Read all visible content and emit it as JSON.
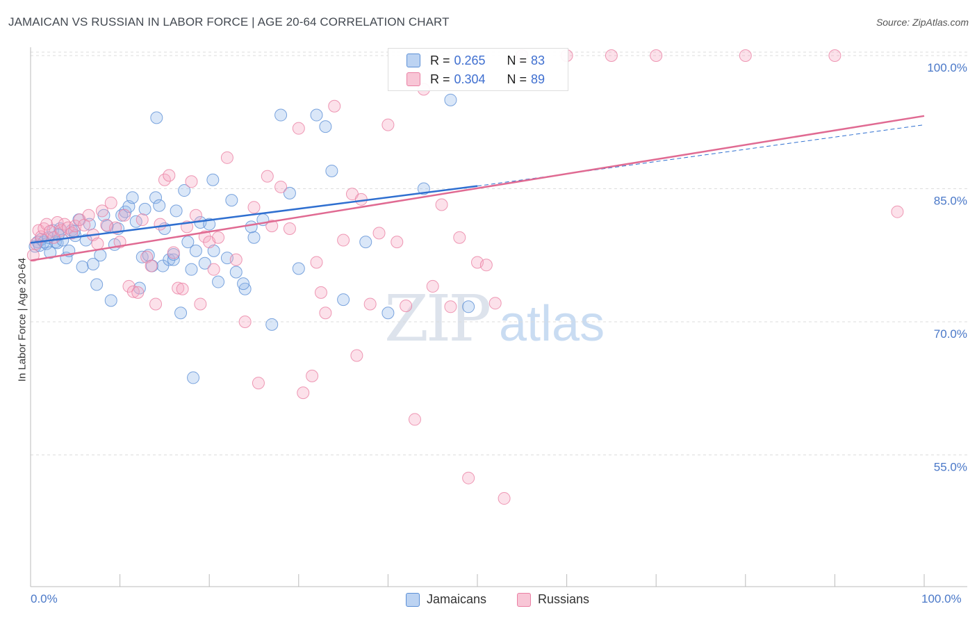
{
  "title": "JAMAICAN VS RUSSIAN IN LABOR FORCE | AGE 20-64 CORRELATION CHART",
  "source": "Source: ZipAtlas.com",
  "watermark": {
    "zip": "ZIP",
    "atlas": "atlas"
  },
  "colors": {
    "jamaicans": "#5b8fd6",
    "russians": "#ea7fa3",
    "jam_line": "#2f6fd0",
    "rus_line": "#e06a92",
    "tick": "#4a78c8"
  },
  "legend": {
    "rows": [
      {
        "r_label": "R =",
        "r_value": "0.265",
        "n_label": "N =",
        "n_value": "83"
      },
      {
        "r_label": "R =",
        "r_value": "0.304",
        "n_label": "N =",
        "n_value": "89"
      }
    ]
  },
  "bottom_legend": {
    "jamaicans": "Jamaicans",
    "russians": "Russians"
  },
  "chart_data": {
    "type": "scatter",
    "title": "JAMAICAN VS RUSSIAN IN LABOR FORCE | AGE 20-64 CORRELATION CHART",
    "xlabel": "",
    "ylabel": "In Labor Force | Age 20-64",
    "x_tick_labels": [
      "0.0%",
      "100.0%"
    ],
    "y_tick_labels": [
      "100.0%",
      "85.0%",
      "70.0%",
      "55.0%"
    ],
    "y_ticks": [
      100,
      85,
      70,
      55
    ],
    "xlim": [
      0,
      100
    ],
    "ylim": [
      40,
      102
    ],
    "legend_position": "top-center",
    "grid": true,
    "series": [
      {
        "name": "Jamaicans",
        "r": 0.265,
        "n": 83,
        "trend": {
          "x0": 0,
          "y0": 78.9,
          "x1": 50,
          "y1": 85.3,
          "dashed_to": {
            "x": 100,
            "y": 92.2
          }
        },
        "points": [
          [
            0.5,
            78.5
          ],
          [
            0.8,
            79.0
          ],
          [
            1.0,
            78.6
          ],
          [
            1.2,
            79.3
          ],
          [
            1.5,
            79.0
          ],
          [
            1.8,
            78.8
          ],
          [
            2.0,
            79.5
          ],
          [
            2.2,
            77.8
          ],
          [
            2.5,
            80.3
          ],
          [
            2.8,
            79.0
          ],
          [
            3.0,
            78.9
          ],
          [
            3.3,
            80.5
          ],
          [
            3.6,
            79.2
          ],
          [
            4.0,
            77.2
          ],
          [
            4.3,
            78.0
          ],
          [
            4.6,
            80.3
          ],
          [
            5.0,
            79.7
          ],
          [
            5.4,
            81.5
          ],
          [
            5.8,
            76.2
          ],
          [
            6.2,
            79.2
          ],
          [
            6.6,
            81.0
          ],
          [
            7.0,
            76.5
          ],
          [
            7.4,
            74.2
          ],
          [
            7.8,
            77.5
          ],
          [
            8.2,
            82.0
          ],
          [
            8.6,
            80.8
          ],
          [
            9.0,
            72.4
          ],
          [
            9.4,
            78.7
          ],
          [
            9.8,
            80.5
          ],
          [
            10.2,
            82.0
          ],
          [
            10.6,
            82.4
          ],
          [
            11.0,
            83.0
          ],
          [
            11.4,
            84.0
          ],
          [
            11.8,
            81.3
          ],
          [
            12.2,
            73.8
          ],
          [
            12.5,
            77.3
          ],
          [
            12.8,
            82.7
          ],
          [
            13.2,
            77.5
          ],
          [
            13.6,
            76.3
          ],
          [
            14.0,
            84.0
          ],
          [
            14.4,
            83.1
          ],
          [
            14.8,
            76.3
          ],
          [
            15.0,
            80.5
          ],
          [
            15.5,
            77.0
          ],
          [
            16.0,
            77.0
          ],
          [
            16.3,
            82.5
          ],
          [
            16.8,
            71.0
          ],
          [
            17.2,
            84.8
          ],
          [
            17.6,
            79.0
          ],
          [
            18.0,
            75.9
          ],
          [
            18.5,
            78.0
          ],
          [
            19.0,
            81.2
          ],
          [
            19.5,
            76.6
          ],
          [
            20.0,
            81.0
          ],
          [
            20.5,
            78.0
          ],
          [
            21.0,
            74.5
          ],
          [
            22.0,
            77.2
          ],
          [
            23.0,
            75.6
          ],
          [
            24.0,
            73.7
          ],
          [
            25.0,
            79.5
          ],
          [
            26.0,
            81.5
          ],
          [
            27.0,
            69.7
          ],
          [
            28.0,
            93.3
          ],
          [
            29.0,
            84.5
          ],
          [
            30.0,
            76.0
          ],
          [
            32.0,
            93.3
          ],
          [
            33.0,
            92.0
          ],
          [
            35.0,
            72.5
          ],
          [
            37.5,
            79.0
          ],
          [
            40.0,
            71.0
          ],
          [
            44.0,
            85.0
          ],
          [
            47.0,
            95.0
          ],
          [
            49.0,
            71.7
          ],
          [
            14.1,
            93.0
          ],
          [
            16.0,
            77.6
          ],
          [
            20.4,
            86.0
          ],
          [
            23.8,
            74.3
          ],
          [
            24.7,
            80.7
          ],
          [
            3.1,
            79.8
          ],
          [
            4.9,
            80.2
          ],
          [
            18.2,
            63.7
          ],
          [
            22.5,
            83.7
          ],
          [
            33.7,
            87.0
          ]
        ]
      },
      {
        "name": "Russians",
        "r": 0.304,
        "n": 89,
        "trend": {
          "x0": 0,
          "y0": 76.9,
          "x1": 100,
          "y1": 93.2
        },
        "points": [
          [
            0.3,
            77.5
          ],
          [
            0.6,
            78.8
          ],
          [
            0.9,
            80.3
          ],
          [
            1.2,
            79.6
          ],
          [
            1.5,
            80.5
          ],
          [
            1.8,
            81.0
          ],
          [
            2.2,
            80.2
          ],
          [
            2.6,
            79.5
          ],
          [
            3.0,
            81.2
          ],
          [
            3.4,
            80.3
          ],
          [
            3.8,
            81.0
          ],
          [
            4.2,
            80.6
          ],
          [
            4.6,
            80.0
          ],
          [
            5.0,
            80.8
          ],
          [
            5.5,
            81.5
          ],
          [
            6.0,
            80.9
          ],
          [
            6.5,
            82.0
          ],
          [
            7.0,
            79.8
          ],
          [
            7.5,
            78.8
          ],
          [
            8.0,
            82.5
          ],
          [
            8.5,
            80.9
          ],
          [
            9.0,
            83.4
          ],
          [
            9.5,
            80.6
          ],
          [
            10.0,
            79.0
          ],
          [
            10.5,
            82.0
          ],
          [
            11.0,
            74.0
          ],
          [
            11.5,
            73.4
          ],
          [
            12.0,
            73.3
          ],
          [
            12.5,
            81.5
          ],
          [
            13.0,
            77.3
          ],
          [
            13.5,
            76.3
          ],
          [
            14.0,
            72.0
          ],
          [
            14.5,
            81.0
          ],
          [
            15.0,
            86.0
          ],
          [
            15.5,
            86.5
          ],
          [
            16.0,
            77.8
          ],
          [
            16.5,
            73.8
          ],
          [
            17.0,
            73.7
          ],
          [
            17.5,
            80.7
          ],
          [
            18.0,
            85.8
          ],
          [
            18.5,
            82.0
          ],
          [
            19.0,
            72.0
          ],
          [
            19.5,
            79.6
          ],
          [
            20.0,
            79.0
          ],
          [
            20.5,
            75.9
          ],
          [
            21.0,
            79.5
          ],
          [
            22.0,
            88.5
          ],
          [
            23.0,
            77.0
          ],
          [
            24.0,
            70.0
          ],
          [
            25.0,
            82.9
          ],
          [
            25.5,
            63.1
          ],
          [
            26.5,
            86.4
          ],
          [
            27.0,
            80.8
          ],
          [
            28.0,
            85.2
          ],
          [
            29.0,
            80.5
          ],
          [
            30.0,
            91.8
          ],
          [
            30.5,
            62.0
          ],
          [
            31.5,
            63.9
          ],
          [
            32.0,
            76.7
          ],
          [
            32.5,
            73.3
          ],
          [
            33.0,
            71.0
          ],
          [
            34.0,
            94.3
          ],
          [
            35.0,
            79.2
          ],
          [
            36.0,
            84.4
          ],
          [
            36.5,
            66.2
          ],
          [
            37.0,
            83.8
          ],
          [
            38.0,
            72.0
          ],
          [
            39.0,
            80.0
          ],
          [
            40.0,
            92.2
          ],
          [
            41.0,
            79.0
          ],
          [
            42.0,
            71.8
          ],
          [
            43.0,
            59.0
          ],
          [
            44.0,
            96.2
          ],
          [
            45.0,
            74.0
          ],
          [
            46.0,
            83.2
          ],
          [
            47.0,
            71.7
          ],
          [
            48.0,
            79.5
          ],
          [
            49.0,
            52.4
          ],
          [
            50.0,
            76.7
          ],
          [
            51.0,
            76.4
          ],
          [
            52.0,
            72.1
          ],
          [
            53.0,
            50.1
          ],
          [
            55.0,
            100.0
          ],
          [
            60.0,
            100.0
          ],
          [
            65.0,
            100.0
          ],
          [
            70.0,
            100.0
          ],
          [
            80.0,
            100.0
          ],
          [
            90.0,
            100.0
          ],
          [
            97.0,
            82.4
          ]
        ]
      }
    ]
  }
}
